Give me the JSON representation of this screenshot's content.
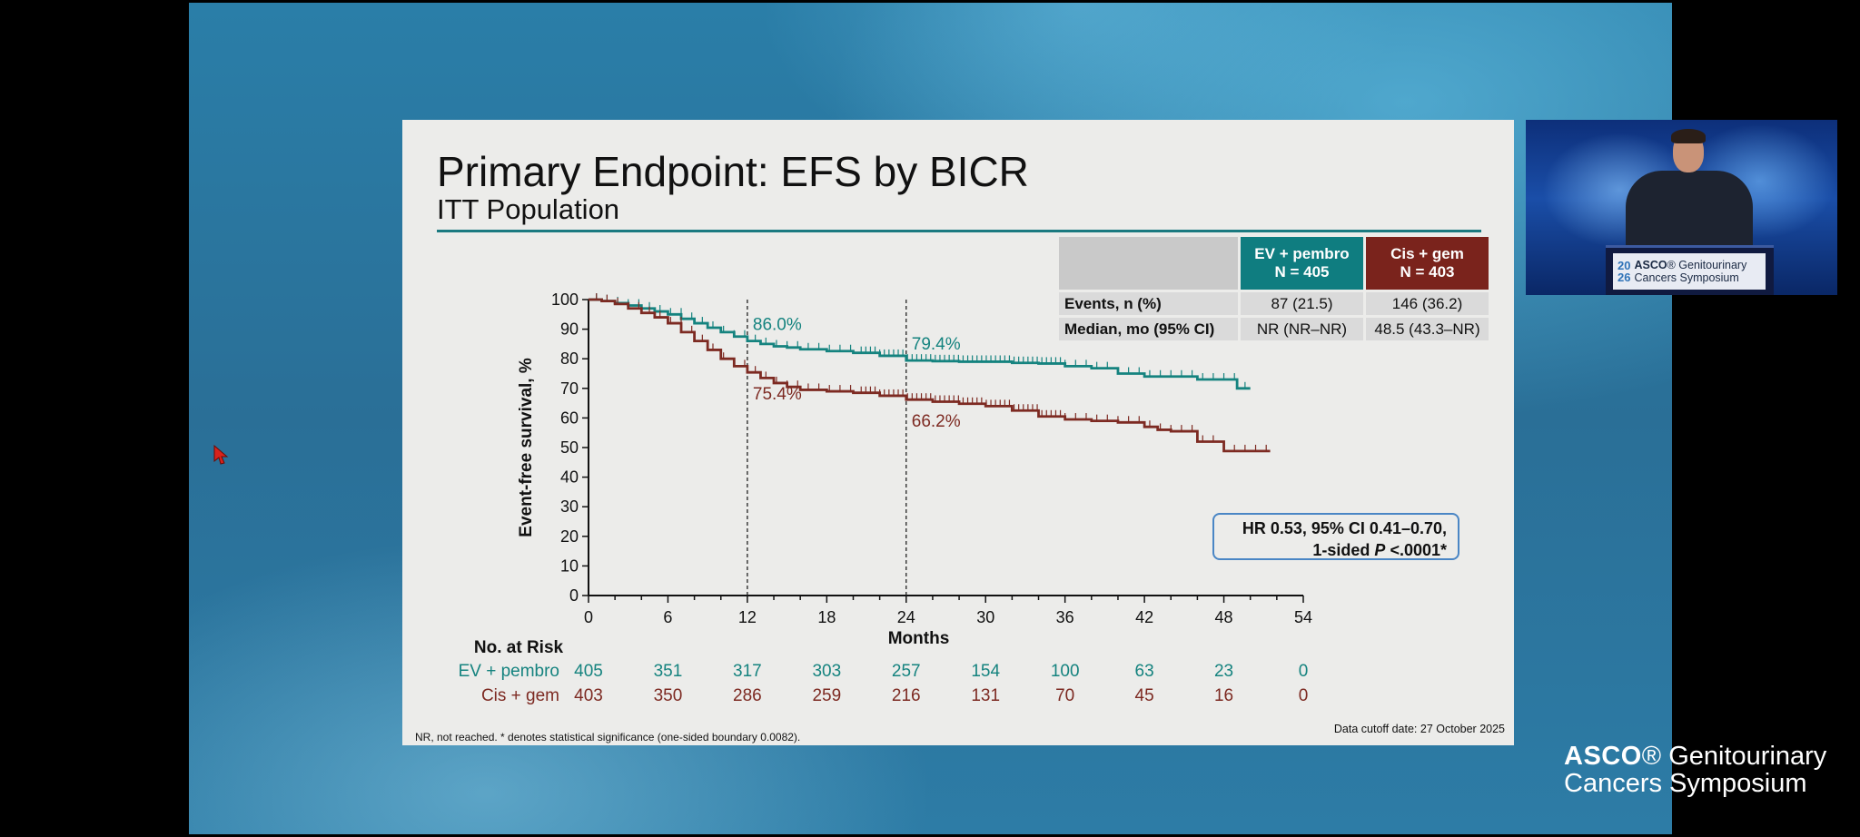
{
  "slide": {
    "title": "Primary Endpoint: EFS by BICR",
    "subtitle": "ITT Population",
    "table": {
      "col_ev_line1": "EV + pembro",
      "col_ev_line2": "N = 405",
      "col_cis_line1": "Cis + gem",
      "col_cis_line2": "N = 403",
      "rows": [
        {
          "label": "Events, n (%)",
          "ev": "87 (21.5)",
          "cis": "146 (36.2)"
        },
        {
          "label": "Median, mo (95% CI)",
          "ev": "NR (NR–NR)",
          "cis": "48.5 (43.3–NR)"
        }
      ]
    },
    "hr_line1": "HR 0.53, 95% CI 0.41–0.70,",
    "hr_line2_pre": "1-sided ",
    "hr_line2_p": "P",
    "hr_line2_post": " <.0001*",
    "footnote": "NR, not reached. * denotes statistical significance (one-sided boundary 0.0082).",
    "cutoff": "Data cutoff date: 27 October 2025"
  },
  "chart_data": {
    "type": "line",
    "title": "",
    "xlabel": "Months",
    "ylabel": "Event-free survival, %",
    "xlim": [
      0,
      54
    ],
    "ylim": [
      0,
      100
    ],
    "xticks": [
      0,
      6,
      12,
      18,
      24,
      30,
      36,
      42,
      48,
      54
    ],
    "yticks": [
      0,
      10,
      20,
      30,
      40,
      50,
      60,
      70,
      80,
      90,
      100
    ],
    "reference_lines_x": [
      12,
      24
    ],
    "series": [
      {
        "name": "EV + pembro",
        "color": "#15837f",
        "x": [
          0,
          1,
          2,
          3,
          4,
          5,
          6,
          7,
          8,
          9,
          10,
          11,
          12,
          13,
          14,
          15,
          16,
          18,
          20,
          22,
          24,
          26,
          28,
          30,
          32,
          34,
          36,
          38,
          40,
          42,
          44,
          46,
          48,
          49,
          50
        ],
        "y": [
          100,
          99.5,
          98.8,
          98,
          97,
          96,
          95,
          93.5,
          92,
          90.5,
          89,
          87.5,
          86,
          85,
          84.2,
          83.8,
          83.2,
          82.6,
          82,
          81,
          79.4,
          79.2,
          79,
          79,
          78.6,
          78.4,
          77.5,
          76.8,
          75,
          74,
          74,
          73,
          73,
          70,
          70
        ],
        "annotations": [
          {
            "x": 12,
            "y": 86.0,
            "label": "86.0%"
          },
          {
            "x": 24,
            "y": 79.4,
            "label": "79.4%"
          }
        ]
      },
      {
        "name": "Cis + gem",
        "color": "#7d2a22",
        "x": [
          0,
          1,
          2,
          3,
          4,
          5,
          6,
          7,
          8,
          9,
          10,
          11,
          12,
          13,
          14,
          15,
          16,
          18,
          20,
          22,
          24,
          26,
          28,
          30,
          32,
          34,
          36,
          38,
          40,
          42,
          43,
          44,
          46,
          48,
          49,
          50,
          51.5
        ],
        "y": [
          100,
          99.5,
          98.5,
          97,
          95.5,
          94,
          92,
          89,
          86,
          83,
          80,
          77.5,
          75.4,
          73.5,
          71.8,
          70.5,
          69.5,
          69,
          68.5,
          67.5,
          66.2,
          65.5,
          64.8,
          64,
          62.5,
          60.5,
          59.5,
          59,
          58.5,
          57,
          56,
          55.5,
          52,
          48.8,
          48.8,
          48.8,
          48.8
        ],
        "annotations": [
          {
            "x": 12,
            "y": 75.4,
            "label": "75.4%"
          },
          {
            "x": 24,
            "y": 66.2,
            "label": "66.2%"
          }
        ]
      }
    ],
    "risk_table": {
      "title": "No. at Risk",
      "times": [
        0,
        6,
        12,
        18,
        24,
        30,
        36,
        42,
        48,
        54
      ],
      "rows": [
        {
          "name": "EV + pembro",
          "color": "#15837f",
          "values": [
            "405",
            "351",
            "317",
            "303",
            "257",
            "154",
            "100",
            "63",
            "23",
            "0"
          ]
        },
        {
          "name": "Cis + gem",
          "color": "#7d2a22",
          "values": [
            "403",
            "350",
            "286",
            "259",
            "216",
            "131",
            "70",
            "45",
            "16",
            "0"
          ]
        }
      ]
    }
  },
  "video": {
    "sign_year_top": "20",
    "sign_year_bottom": "26",
    "sign_brand": "ASCO",
    "sign_line1_rest": "® Genitourinary",
    "sign_line2": "Cancers Symposium"
  },
  "branding": {
    "brand": "ASCO",
    "line1_rest": "® Genitourinary",
    "line2": "Cancers Symposium"
  }
}
